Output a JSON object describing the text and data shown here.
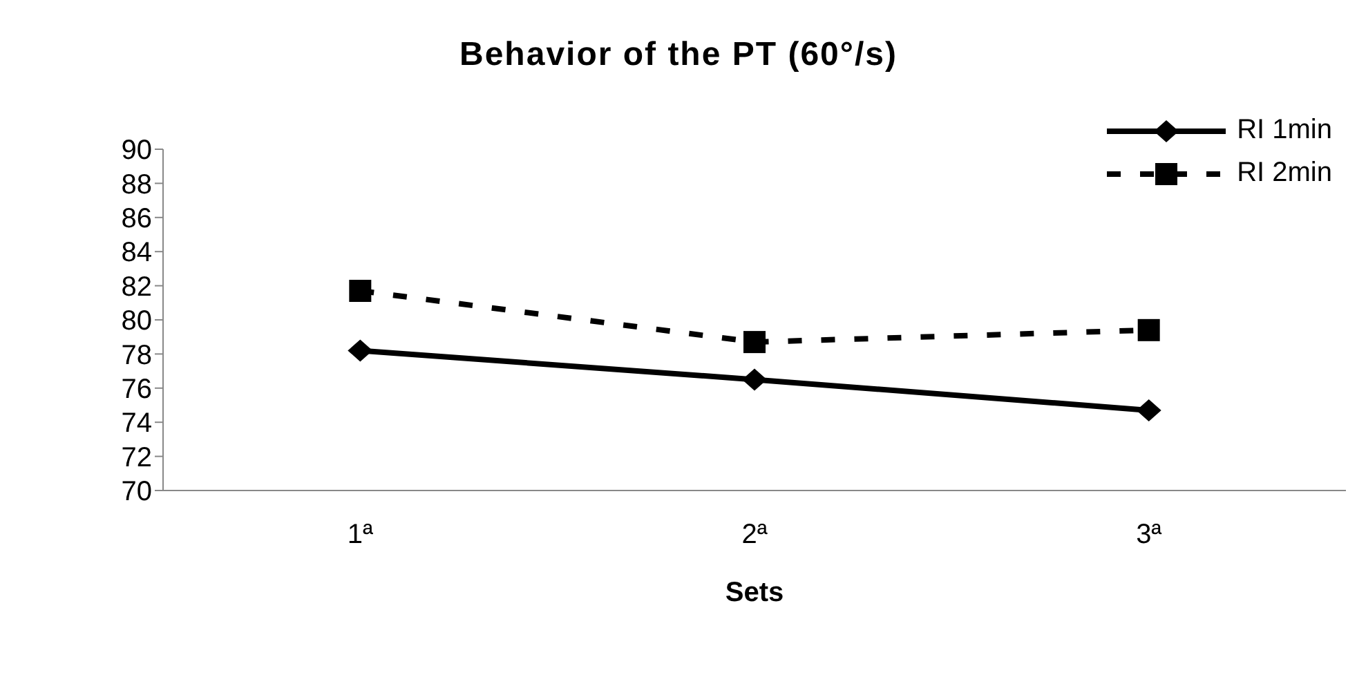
{
  "chart_data": {
    "type": "line",
    "title": "Behavior of the PT (60°/s)",
    "xlabel": "Sets",
    "categories": [
      "1ª",
      "2ª",
      "3ª"
    ],
    "series": [
      {
        "name": "RI 1min",
        "color": "#000000",
        "values": [
          78.2,
          76.5,
          74.7
        ],
        "marker": "diamond",
        "line_style": "solid"
      },
      {
        "name": "RI 2min",
        "color": "#000000",
        "values": [
          81.7,
          78.7,
          79.4
        ],
        "marker": "square",
        "line_style": "dashed"
      }
    ],
    "ylim": [
      70,
      90
    ],
    "yticks": [
      70,
      72,
      74,
      76,
      78,
      80,
      82,
      84,
      86,
      88,
      90
    ],
    "grid": false,
    "legend": "top right"
  }
}
